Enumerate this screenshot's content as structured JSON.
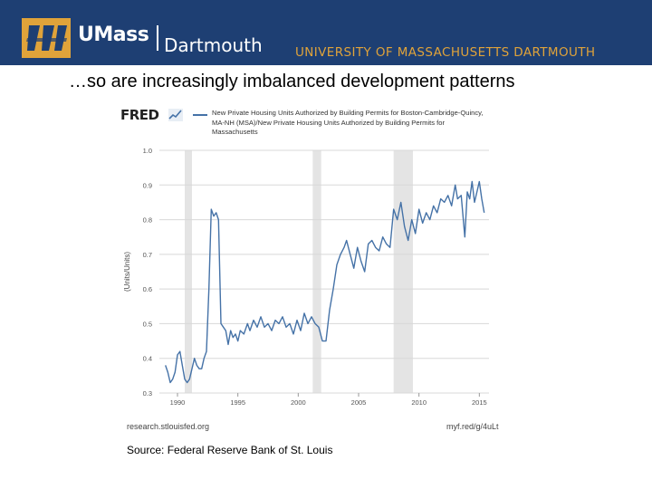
{
  "header": {
    "brand_short": "UMass",
    "brand_campus": "Dartmouth",
    "university": "UNIVERSITY OF MASSACHUSETTS DARTMOUTH",
    "bg_color": "#1e3f73",
    "accent_color": "#e0a33a"
  },
  "slide": {
    "title": "…so are increasingly imbalanced development patterns",
    "source_note": "Source: Federal Reserve Bank of St. Louis"
  },
  "fred": {
    "logo_text": "FRED",
    "source_left": "research.stlouisfed.org",
    "source_right": "myf.red/g/4uLt"
  },
  "chart_data": {
    "type": "line",
    "title": "",
    "ylabel": "(Units/Units)",
    "xlabel": "",
    "ylim": [
      0.3,
      1.0
    ],
    "xlim": [
      1988.5,
      2015.8
    ],
    "yticks": [
      0.3,
      0.4,
      0.5,
      0.6,
      0.7,
      0.8,
      0.9,
      1.0
    ],
    "ytick_labels": [
      "0.3",
      "0.4",
      "0.5",
      "0.6",
      "0.7",
      "0.8",
      "0.9",
      "1.0"
    ],
    "xticks": [
      1990,
      1995,
      2000,
      2005,
      2010,
      2015
    ],
    "xtick_labels": [
      "1990",
      "1995",
      "2000",
      "2005",
      "2010",
      "2015"
    ],
    "grid": "horizontal",
    "line_color": "#4572a7",
    "recessions": [
      [
        1990.6,
        1991.2
      ],
      [
        2001.2,
        2001.9
      ],
      [
        2007.9,
        2009.5
      ]
    ],
    "series": [
      {
        "name": "New Private Housing Units Authorized by Building Permits for Boston-Cambridge-Quincy, MA-NH (MSA)/New Private Housing Units Authorized by Building Permits for Massachusetts",
        "x": [
          1989.0,
          1989.2,
          1989.4,
          1989.6,
          1989.8,
          1990.0,
          1990.2,
          1990.4,
          1990.6,
          1990.8,
          1991.0,
          1991.2,
          1991.4,
          1991.6,
          1991.8,
          1992.0,
          1992.2,
          1992.4,
          1992.6,
          1992.8,
          1993.0,
          1993.2,
          1993.4,
          1993.6,
          1993.8,
          1994.0,
          1994.2,
          1994.4,
          1994.6,
          1994.8,
          1995.0,
          1995.2,
          1995.5,
          1995.8,
          1996.0,
          1996.3,
          1996.6,
          1996.9,
          1997.2,
          1997.5,
          1997.8,
          1998.1,
          1998.4,
          1998.7,
          1999.0,
          1999.3,
          1999.6,
          1999.9,
          2000.2,
          2000.5,
          2000.8,
          2001.1,
          2001.4,
          2001.7,
          2002.0,
          2002.3,
          2002.6,
          2002.9,
          2003.2,
          2003.5,
          2003.8,
          2004.0,
          2004.3,
          2004.6,
          2004.9,
          2005.2,
          2005.5,
          2005.8,
          2006.1,
          2006.4,
          2006.7,
          2007.0,
          2007.3,
          2007.6,
          2007.9,
          2008.2,
          2008.5,
          2008.8,
          2009.1,
          2009.4,
          2009.7,
          2010.0,
          2010.3,
          2010.6,
          2010.9,
          2011.2,
          2011.5,
          2011.8,
          2012.1,
          2012.4,
          2012.7,
          2013.0,
          2013.2,
          2013.5,
          2013.8,
          2014.0,
          2014.2,
          2014.4,
          2014.6,
          2014.8,
          2015.0,
          2015.2,
          2015.4
        ],
        "values": [
          0.38,
          0.36,
          0.33,
          0.34,
          0.36,
          0.41,
          0.42,
          0.38,
          0.34,
          0.33,
          0.34,
          0.37,
          0.4,
          0.38,
          0.37,
          0.37,
          0.4,
          0.42,
          0.6,
          0.83,
          0.81,
          0.82,
          0.8,
          0.5,
          0.49,
          0.48,
          0.44,
          0.48,
          0.46,
          0.47,
          0.45,
          0.48,
          0.47,
          0.5,
          0.48,
          0.51,
          0.49,
          0.52,
          0.49,
          0.5,
          0.48,
          0.51,
          0.5,
          0.52,
          0.49,
          0.5,
          0.47,
          0.51,
          0.48,
          0.53,
          0.5,
          0.52,
          0.5,
          0.49,
          0.45,
          0.45,
          0.54,
          0.6,
          0.67,
          0.7,
          0.72,
          0.74,
          0.7,
          0.66,
          0.72,
          0.68,
          0.65,
          0.73,
          0.74,
          0.72,
          0.71,
          0.75,
          0.73,
          0.72,
          0.83,
          0.8,
          0.85,
          0.78,
          0.74,
          0.8,
          0.76,
          0.83,
          0.79,
          0.82,
          0.8,
          0.84,
          0.82,
          0.86,
          0.85,
          0.87,
          0.84,
          0.9,
          0.86,
          0.87,
          0.75,
          0.88,
          0.86,
          0.91,
          0.85,
          0.88,
          0.91,
          0.86,
          0.82
        ]
      }
    ]
  }
}
